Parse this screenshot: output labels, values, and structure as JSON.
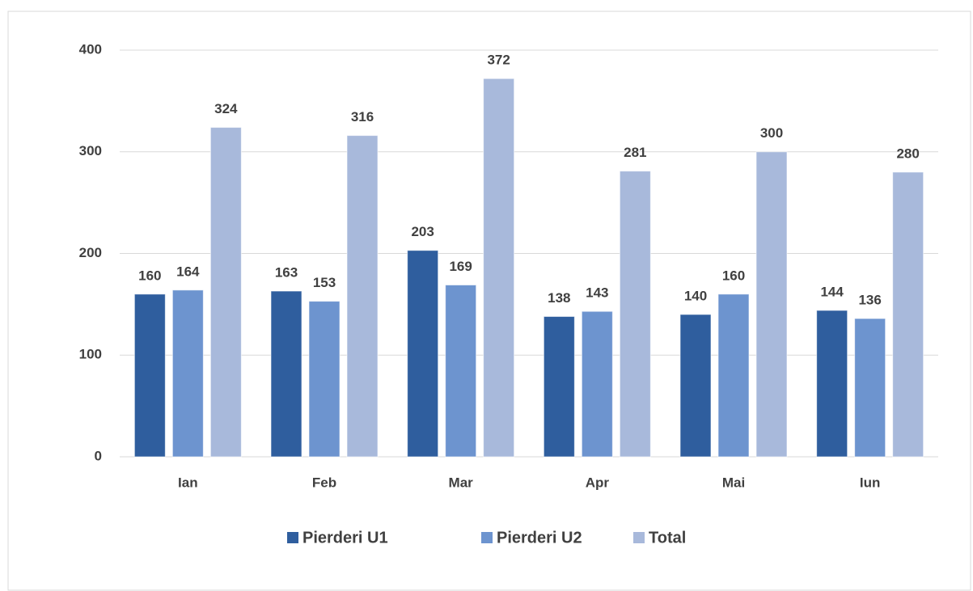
{
  "chart_data": {
    "type": "bar",
    "categories": [
      "Ian",
      "Feb",
      "Mar",
      "Apr",
      "Mai",
      "Iun"
    ],
    "series": [
      {
        "name": "Pierderi U1",
        "color": "#2f5e9e",
        "values": [
          160,
          163,
          203,
          138,
          140,
          144
        ]
      },
      {
        "name": "Pierderi U2",
        "color": "#6d94cf",
        "values": [
          164,
          153,
          169,
          143,
          160,
          136
        ]
      },
      {
        "name": "Total",
        "color": "#a8b9db",
        "values": [
          324,
          316,
          372,
          281,
          300,
          280
        ]
      }
    ],
    "ylim": [
      0,
      400
    ],
    "yticks": [
      0,
      100,
      200,
      300,
      400
    ],
    "grid": true,
    "legend": "bottom"
  }
}
